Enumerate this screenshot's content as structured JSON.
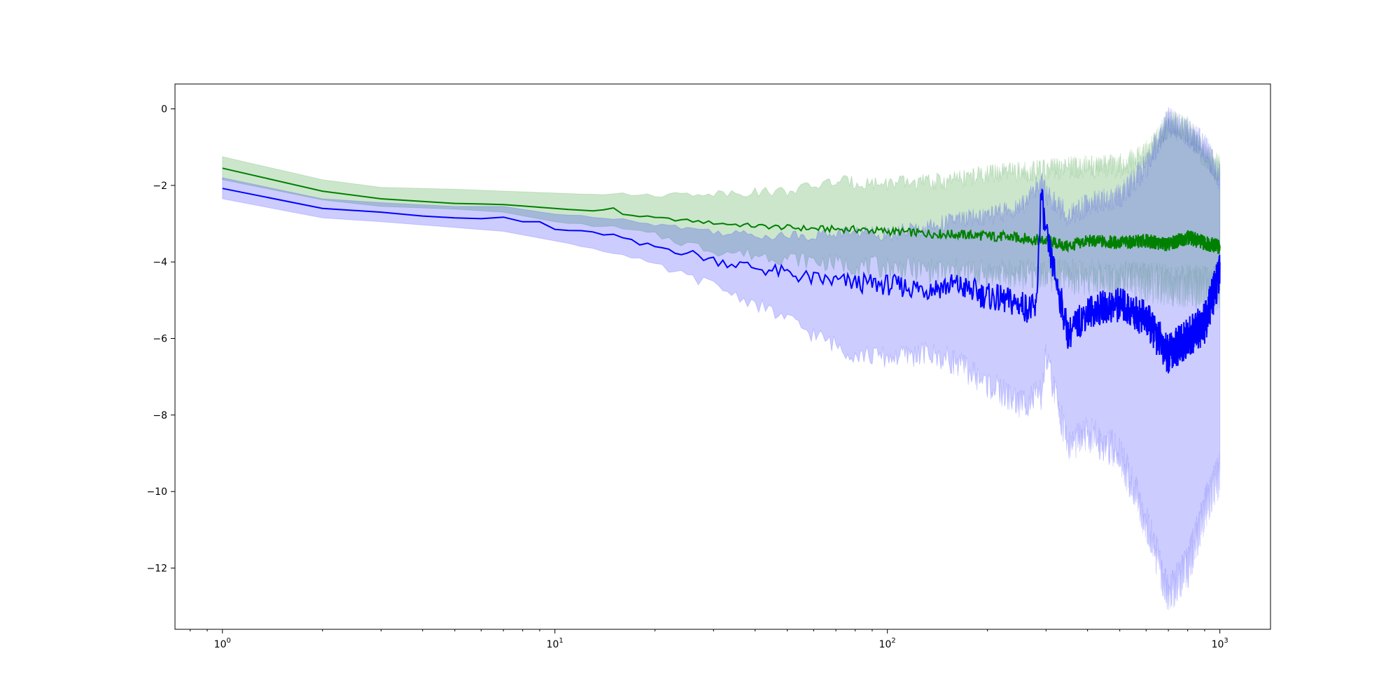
{
  "chart_data": {
    "type": "line",
    "title": "",
    "xlabel": "",
    "ylabel": "",
    "xscale": "log",
    "xlim": [
      0.72,
      1420
    ],
    "ylim": [
      -13.6,
      0.65
    ],
    "grid": false,
    "x_ticks": [
      {
        "value": 1,
        "base": "10",
        "exp": "0"
      },
      {
        "value": 10,
        "base": "10",
        "exp": "1"
      },
      {
        "value": 100,
        "base": "10",
        "exp": "2"
      },
      {
        "value": 1000,
        "base": "10",
        "exp": "3"
      }
    ],
    "y_ticks": [
      {
        "value": 0,
        "label": "0"
      },
      {
        "value": -2,
        "label": "−2"
      },
      {
        "value": -4,
        "label": "−4"
      },
      {
        "value": -6,
        "label": "−6"
      },
      {
        "value": -8,
        "label": "−8"
      },
      {
        "value": -10,
        "label": "−10"
      },
      {
        "value": -12,
        "label": "−12"
      }
    ],
    "series": [
      {
        "color": "#008000",
        "band_fill": "#008000",
        "band_opacity": 0.2,
        "mean": [
          [
            1,
            -1.55
          ],
          [
            2,
            -2.15
          ],
          [
            3,
            -2.35
          ],
          [
            4,
            -2.42
          ],
          [
            5,
            -2.47
          ],
          [
            7,
            -2.5
          ],
          [
            10,
            -2.6
          ],
          [
            13,
            -2.67
          ],
          [
            15,
            -2.6
          ],
          [
            16,
            -2.75
          ],
          [
            20,
            -2.85
          ],
          [
            25,
            -2.92
          ],
          [
            30,
            -2.98
          ],
          [
            40,
            -3.06
          ],
          [
            50,
            -3.1
          ],
          [
            60,
            -3.13
          ],
          [
            80,
            -3.15
          ],
          [
            100,
            -3.2
          ],
          [
            130,
            -3.25
          ],
          [
            160,
            -3.28
          ],
          [
            200,
            -3.32
          ],
          [
            250,
            -3.37
          ],
          [
            300,
            -3.45
          ],
          [
            350,
            -3.6
          ],
          [
            400,
            -3.45
          ],
          [
            500,
            -3.5
          ],
          [
            600,
            -3.45
          ],
          [
            700,
            -3.55
          ],
          [
            800,
            -3.35
          ],
          [
            900,
            -3.5
          ],
          [
            1000,
            -3.6
          ]
        ],
        "lower": [
          [
            1,
            -1.85
          ],
          [
            2,
            -2.38
          ],
          [
            3,
            -2.55
          ],
          [
            5,
            -2.62
          ],
          [
            7,
            -2.7
          ],
          [
            10,
            -2.95
          ],
          [
            15,
            -3.1
          ],
          [
            20,
            -3.3
          ],
          [
            30,
            -3.7
          ],
          [
            50,
            -3.9
          ],
          [
            80,
            -4.1
          ],
          [
            100,
            -4.15
          ],
          [
            150,
            -4.25
          ],
          [
            200,
            -4.3
          ],
          [
            300,
            -4.35
          ],
          [
            400,
            -4.4
          ],
          [
            500,
            -4.45
          ],
          [
            700,
            -4.6
          ],
          [
            1000,
            -4.7
          ]
        ],
        "upper": [
          [
            1,
            -1.25
          ],
          [
            2,
            -1.85
          ],
          [
            3,
            -2.05
          ],
          [
            5,
            -2.1
          ],
          [
            10,
            -2.2
          ],
          [
            20,
            -2.25
          ],
          [
            30,
            -2.2
          ],
          [
            50,
            -2.15
          ],
          [
            70,
            -1.9
          ],
          [
            100,
            -1.95
          ],
          [
            150,
            -1.9
          ],
          [
            200,
            -1.7
          ],
          [
            300,
            -1.6
          ],
          [
            400,
            -1.5
          ],
          [
            500,
            -1.5
          ],
          [
            600,
            -1.2
          ],
          [
            700,
            -0.4
          ],
          [
            800,
            -0.55
          ],
          [
            900,
            -1.2
          ],
          [
            1000,
            -1.6
          ]
        ]
      },
      {
        "color": "#0000ff",
        "band_fill": "#0000ff",
        "band_opacity": 0.2,
        "mean": [
          [
            1,
            -2.08
          ],
          [
            2,
            -2.6
          ],
          [
            3,
            -2.7
          ],
          [
            4,
            -2.8
          ],
          [
            5,
            -2.85
          ],
          [
            6,
            -2.87
          ],
          [
            7,
            -2.83
          ],
          [
            8,
            -2.95
          ],
          [
            9,
            -2.95
          ],
          [
            10,
            -3.15
          ],
          [
            12,
            -3.2
          ],
          [
            15,
            -3.3
          ],
          [
            18,
            -3.55
          ],
          [
            20,
            -3.6
          ],
          [
            25,
            -3.75
          ],
          [
            30,
            -3.95
          ],
          [
            35,
            -4.05
          ],
          [
            40,
            -4.15
          ],
          [
            50,
            -4.3
          ],
          [
            60,
            -4.45
          ],
          [
            80,
            -4.55
          ],
          [
            100,
            -4.6
          ],
          [
            130,
            -4.7
          ],
          [
            160,
            -4.6
          ],
          [
            200,
            -4.9
          ],
          [
            250,
            -5.1
          ],
          [
            280,
            -5.3
          ],
          [
            290,
            -2.2
          ],
          [
            300,
            -3.3
          ],
          [
            350,
            -5.9
          ],
          [
            400,
            -5.3
          ],
          [
            500,
            -5.1
          ],
          [
            600,
            -5.5
          ],
          [
            700,
            -6.4
          ],
          [
            800,
            -6.0
          ],
          [
            900,
            -5.6
          ],
          [
            1000,
            -4.3
          ]
        ],
        "lower": [
          [
            1,
            -2.35
          ],
          [
            2,
            -2.85
          ],
          [
            3,
            -2.95
          ],
          [
            5,
            -3.1
          ],
          [
            7,
            -3.2
          ],
          [
            10,
            -3.45
          ],
          [
            15,
            -3.75
          ],
          [
            20,
            -4.1
          ],
          [
            30,
            -4.6
          ],
          [
            40,
            -5.1
          ],
          [
            50,
            -5.5
          ],
          [
            60,
            -5.9
          ],
          [
            80,
            -6.4
          ],
          [
            100,
            -6.5
          ],
          [
            130,
            -6.4
          ],
          [
            160,
            -6.6
          ],
          [
            200,
            -7.2
          ],
          [
            250,
            -7.7
          ],
          [
            290,
            -7.5
          ],
          [
            300,
            -6.5
          ],
          [
            350,
            -8.8
          ],
          [
            400,
            -8.5
          ],
          [
            500,
            -9.0
          ],
          [
            600,
            -10.8
          ],
          [
            700,
            -12.7
          ],
          [
            800,
            -12.0
          ],
          [
            900,
            -10.5
          ],
          [
            1000,
            -9.5
          ]
        ],
        "upper": [
          [
            1,
            -1.8
          ],
          [
            2,
            -2.35
          ],
          [
            3,
            -2.45
          ],
          [
            5,
            -2.55
          ],
          [
            7,
            -2.55
          ],
          [
            10,
            -2.75
          ],
          [
            15,
            -2.85
          ],
          [
            20,
            -3.0
          ],
          [
            30,
            -3.2
          ],
          [
            40,
            -3.3
          ],
          [
            60,
            -3.3
          ],
          [
            80,
            -3.2
          ],
          [
            100,
            -3.25
          ],
          [
            130,
            -3.1
          ],
          [
            160,
            -2.9
          ],
          [
            200,
            -2.8
          ],
          [
            250,
            -2.6
          ],
          [
            290,
            -1.9
          ],
          [
            300,
            -2.2
          ],
          [
            350,
            -2.8
          ],
          [
            400,
            -2.5
          ],
          [
            500,
            -2.3
          ],
          [
            600,
            -1.5
          ],
          [
            700,
            -0.3
          ],
          [
            800,
            -0.6
          ],
          [
            900,
            -1.0
          ],
          [
            1000,
            -1.8
          ]
        ]
      }
    ]
  }
}
